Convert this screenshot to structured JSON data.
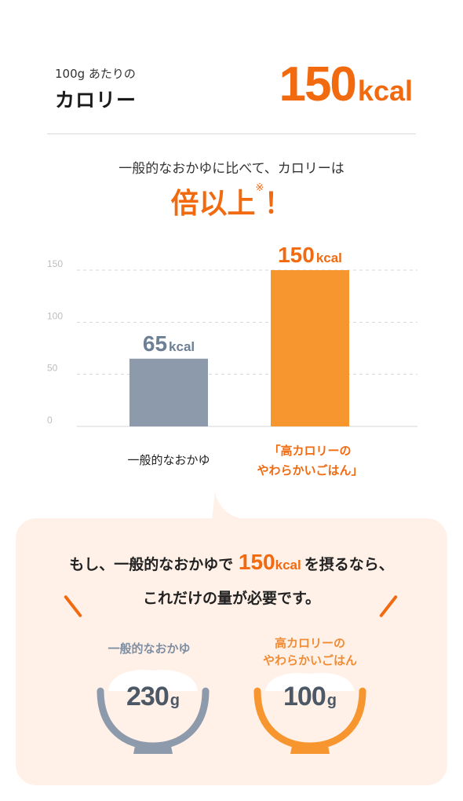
{
  "header": {
    "sub_label": "100g あたりの",
    "main_label": "カロリー",
    "value": "150",
    "unit": "kcal"
  },
  "lead": {
    "text": "一般的なおかゆに比べて、カロリーは",
    "headline": "倍以上",
    "headline_mark": "※",
    "headline_exclaim": "！"
  },
  "chart_data": {
    "type": "bar",
    "categories": [
      "一般的なおかゆ",
      "「高カロリーのやわらかいごはん」"
    ],
    "category_lines": [
      [
        "一般的なおかゆ"
      ],
      [
        "「高カロリーの",
        "やわらかいごはん」"
      ]
    ],
    "values": [
      65,
      150
    ],
    "value_labels": [
      "65",
      "150"
    ],
    "value_unit": "kcal",
    "yticks": [
      0,
      50,
      100,
      150
    ],
    "ylim": [
      0,
      150
    ],
    "grid": true,
    "colors": [
      "#8c9aab",
      "#f7952e"
    ],
    "label_colors": [
      "#6d7f94",
      "#f16a10"
    ]
  },
  "panel": {
    "question_prefix": "もし、一般的なおかゆで",
    "question_value": "150",
    "question_unit": "kcal",
    "question_suffix": "を摂るなら、",
    "question_line2": "これだけの量が必要です。",
    "bowls": [
      {
        "label_line1": "一般的なおかゆ",
        "label_line2": "",
        "amount": "230",
        "unit": "g",
        "color": "#8c9aab"
      },
      {
        "label_line1": "高カロリーの",
        "label_line2": "やわらかいごはん",
        "amount": "100",
        "unit": "g",
        "color": "#f7952e"
      }
    ]
  }
}
